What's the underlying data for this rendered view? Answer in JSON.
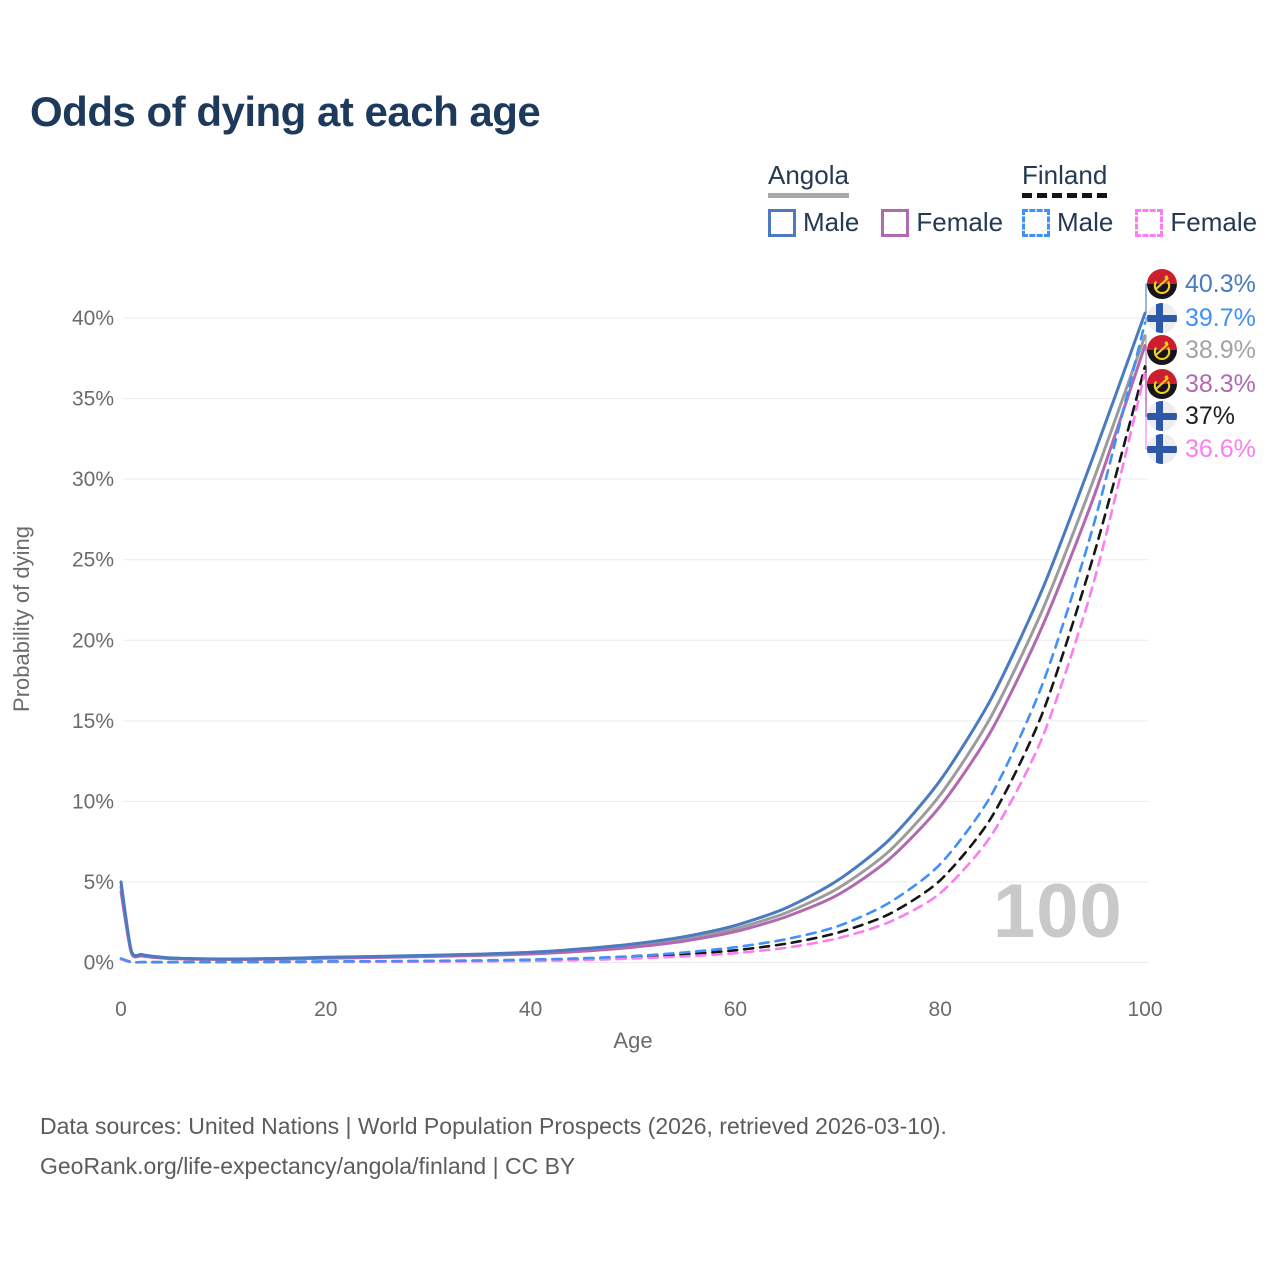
{
  "title": "Odds of dying at each age",
  "legend": {
    "angola": {
      "country": "Angola",
      "male_label": "Male",
      "female_label": "Female",
      "male_color": "#4a7abf",
      "female_color": "#b16ab1",
      "underline_color": "#a8a8a8",
      "line_style": "solid"
    },
    "finland": {
      "country": "Finland",
      "male_label": "Male",
      "female_label": "Female",
      "male_color": "#4090f7",
      "female_color": "#fb7df0",
      "underline_color": "#141414",
      "line_style": "dashed"
    }
  },
  "chart_data": {
    "type": "line",
    "title": "Odds of dying at each age",
    "xlabel": "Age",
    "ylabel": "Probability of dying",
    "xlim": [
      0,
      100
    ],
    "ylim": [
      0,
      42
    ],
    "xticks": [
      0,
      20,
      40,
      60,
      80,
      100
    ],
    "yticks": [
      0,
      5,
      10,
      15,
      20,
      25,
      30,
      35,
      40
    ],
    "ytick_suffix": "%",
    "grid": "horizontal",
    "legend_position": "top-right",
    "watermark": "100",
    "x_ages": [
      0,
      1,
      2,
      3,
      5,
      10,
      15,
      20,
      25,
      30,
      35,
      40,
      45,
      50,
      55,
      60,
      65,
      70,
      75,
      80,
      85,
      90,
      95,
      100
    ],
    "series": [
      {
        "name": "Angola Both sexes",
        "country": "angola",
        "color": "#9c9c9c",
        "dashed": false,
        "values": [
          4.7,
          0.68,
          0.45,
          0.36,
          0.26,
          0.2,
          0.23,
          0.29,
          0.34,
          0.4,
          0.48,
          0.58,
          0.77,
          1.05,
          1.45,
          2.1,
          3.1,
          4.6,
          6.9,
          10.4,
          15.3,
          21.9,
          30.0,
          38.9
        ]
      },
      {
        "name": "Angola Female",
        "country": "angola",
        "color": "#b16ab1",
        "dashed": false,
        "values": [
          4.4,
          0.62,
          0.41,
          0.33,
          0.24,
          0.19,
          0.21,
          0.26,
          0.31,
          0.37,
          0.44,
          0.53,
          0.7,
          0.95,
          1.33,
          1.92,
          2.85,
          4.2,
          6.4,
          9.7,
          14.4,
          20.9,
          28.9,
          38.3
        ]
      },
      {
        "name": "Angola Male",
        "country": "angola",
        "color": "#4a7abf",
        "dashed": false,
        "values": [
          5.0,
          0.75,
          0.5,
          0.4,
          0.28,
          0.22,
          0.25,
          0.32,
          0.38,
          0.44,
          0.52,
          0.63,
          0.85,
          1.15,
          1.6,
          2.3,
          3.4,
          5.1,
          7.6,
          11.3,
          16.4,
          23.2,
          31.5,
          40.3
        ]
      },
      {
        "name": "Finland Both sexes",
        "country": "finland",
        "color": "#161616",
        "dashed": true,
        "values": [
          0.22,
          0.03,
          0.02,
          0.02,
          0.02,
          0.02,
          0.03,
          0.05,
          0.06,
          0.08,
          0.1,
          0.14,
          0.2,
          0.32,
          0.5,
          0.76,
          1.17,
          1.85,
          3.0,
          5.1,
          9.0,
          15.5,
          25.3,
          37.0
        ]
      },
      {
        "name": "Finland Female",
        "country": "finland",
        "color": "#fb7df0",
        "dashed": true,
        "values": [
          0.2,
          0.02,
          0.02,
          0.01,
          0.01,
          0.02,
          0.02,
          0.03,
          0.04,
          0.05,
          0.07,
          0.1,
          0.15,
          0.25,
          0.38,
          0.58,
          0.92,
          1.5,
          2.5,
          4.3,
          7.9,
          14.0,
          23.6,
          36.6
        ]
      },
      {
        "name": "Finland Male",
        "country": "finland",
        "color": "#4090f7",
        "dashed": true,
        "values": [
          0.25,
          0.03,
          0.02,
          0.02,
          0.02,
          0.02,
          0.04,
          0.07,
          0.08,
          0.1,
          0.13,
          0.18,
          0.26,
          0.4,
          0.62,
          0.95,
          1.45,
          2.25,
          3.7,
          6.1,
          10.4,
          17.3,
          27.2,
          39.7
        ]
      }
    ],
    "end_labels": [
      {
        "text": "40.3%",
        "value": 40.3,
        "flag": "angola",
        "series": "Angola Male",
        "color": "#4a7abf"
      },
      {
        "text": "39.7%",
        "value": 39.7,
        "flag": "finland",
        "series": "Finland Male",
        "color": "#4090f7"
      },
      {
        "text": "38.9%",
        "value": 38.9,
        "flag": "angola",
        "series": "Angola Both sexes",
        "color": "#a3a3a3"
      },
      {
        "text": "38.3%",
        "value": 38.3,
        "flag": "angola",
        "series": "Angola Female",
        "color": "#b16ab1"
      },
      {
        "text": "37%",
        "value": 37.0,
        "flag": "finland",
        "series": "Finland Both sexes",
        "color": "#1f1f1f"
      },
      {
        "text": "36.6%",
        "value": 36.6,
        "flag": "finland",
        "series": "Finland Female",
        "color": "#fb7df0"
      }
    ]
  },
  "footer": {
    "line1": "Data sources: United Nations | World Population Prospects (2026, retrieved 2026-03-10).",
    "line2": "GeoRank.org/life-expectancy/angola/finland | CC BY"
  }
}
